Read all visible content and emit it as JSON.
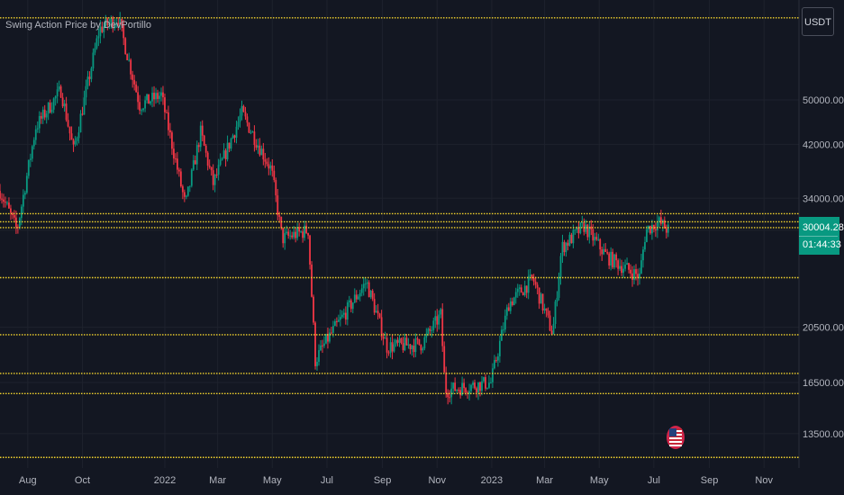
{
  "app": {
    "title": "Swing Action Price by DevPortillo",
    "currency_button": "USDT",
    "last_price": "30004.28",
    "countdown": "01:44:33",
    "flag_icon": "us-flag-icon"
  },
  "colors": {
    "background": "#131722",
    "grid": "#1e222d",
    "level_line": "#f2d22c",
    "up_candle": "#089981",
    "down_candle": "#f23645",
    "axis_text": "#b2b5be",
    "price_tag": "#089981"
  },
  "chart_data": {
    "type": "candlestick",
    "title": "Swing Action Price by DevPortillo",
    "y_scale": "log",
    "ylim": [
      11800,
      74000
    ],
    "y_ticks": [
      50000,
      42000,
      34000,
      30000,
      20500,
      16500,
      13500
    ],
    "y_tick_labels": [
      "50000.00",
      "42000.00",
      "34000.00",
      "",
      "20500.00",
      "16500.00",
      "13500.00"
    ],
    "x_range": [
      "2021-07-01",
      "2023-12-10"
    ],
    "x_ticks": [
      {
        "date": "2021-08-01",
        "label": "Aug"
      },
      {
        "date": "2021-10-01",
        "label": "Oct"
      },
      {
        "date": "2022-01-01",
        "label": "2022"
      },
      {
        "date": "2022-03-01",
        "label": "Mar"
      },
      {
        "date": "2022-05-01",
        "label": "May"
      },
      {
        "date": "2022-07-01",
        "label": "Jul"
      },
      {
        "date": "2022-09-01",
        "label": "Sep"
      },
      {
        "date": "2022-11-01",
        "label": "Nov"
      },
      {
        "date": "2023-01-01",
        "label": "2023"
      },
      {
        "date": "2023-03-01",
        "label": "Mar"
      },
      {
        "date": "2023-05-01",
        "label": "May"
      },
      {
        "date": "2023-07-01",
        "label": "Jul"
      },
      {
        "date": "2023-09-01",
        "label": "Sep"
      },
      {
        "date": "2023-11-01",
        "label": "Nov"
      }
    ],
    "levels": [
      69000,
      32000,
      31000,
      30300,
      24900,
      19900,
      17100,
      15800,
      12300
    ],
    "last_price": 30004.28,
    "series": [
      {
        "anchors": [
          [
            "2021-07-01",
            35000
          ],
          [
            "2021-07-20",
            30000
          ],
          [
            "2021-08-10",
            45000
          ],
          [
            "2021-09-07",
            52000
          ],
          [
            "2021-09-21",
            41000
          ],
          [
            "2021-10-20",
            66000
          ],
          [
            "2021-11-10",
            69000
          ],
          [
            "2021-12-04",
            49000
          ],
          [
            "2021-12-28",
            51000
          ],
          [
            "2022-01-24",
            33000
          ],
          [
            "2022-02-10",
            44000
          ],
          [
            "2022-02-24",
            36000
          ],
          [
            "2022-03-28",
            47500
          ],
          [
            "2022-04-30",
            38000
          ],
          [
            "2022-05-12",
            29000
          ],
          [
            "2022-06-10",
            30000
          ],
          [
            "2022-06-18",
            18000
          ],
          [
            "2022-07-01",
            19500
          ],
          [
            "2022-08-14",
            24500
          ],
          [
            "2022-09-06",
            19000
          ],
          [
            "2022-10-15",
            19200
          ],
          [
            "2022-11-05",
            21500
          ],
          [
            "2022-11-10",
            16000
          ],
          [
            "2022-12-31",
            16500
          ],
          [
            "2023-01-20",
            22500
          ],
          [
            "2023-02-16",
            24800
          ],
          [
            "2023-03-10",
            20000
          ],
          [
            "2023-03-20",
            28000
          ],
          [
            "2023-04-14",
            30500
          ],
          [
            "2023-05-10",
            27000
          ],
          [
            "2023-06-15",
            25000
          ],
          [
            "2023-06-22",
            30000
          ],
          [
            "2023-07-06",
            31000
          ],
          [
            "2023-07-17",
            30004
          ]
        ]
      }
    ]
  }
}
